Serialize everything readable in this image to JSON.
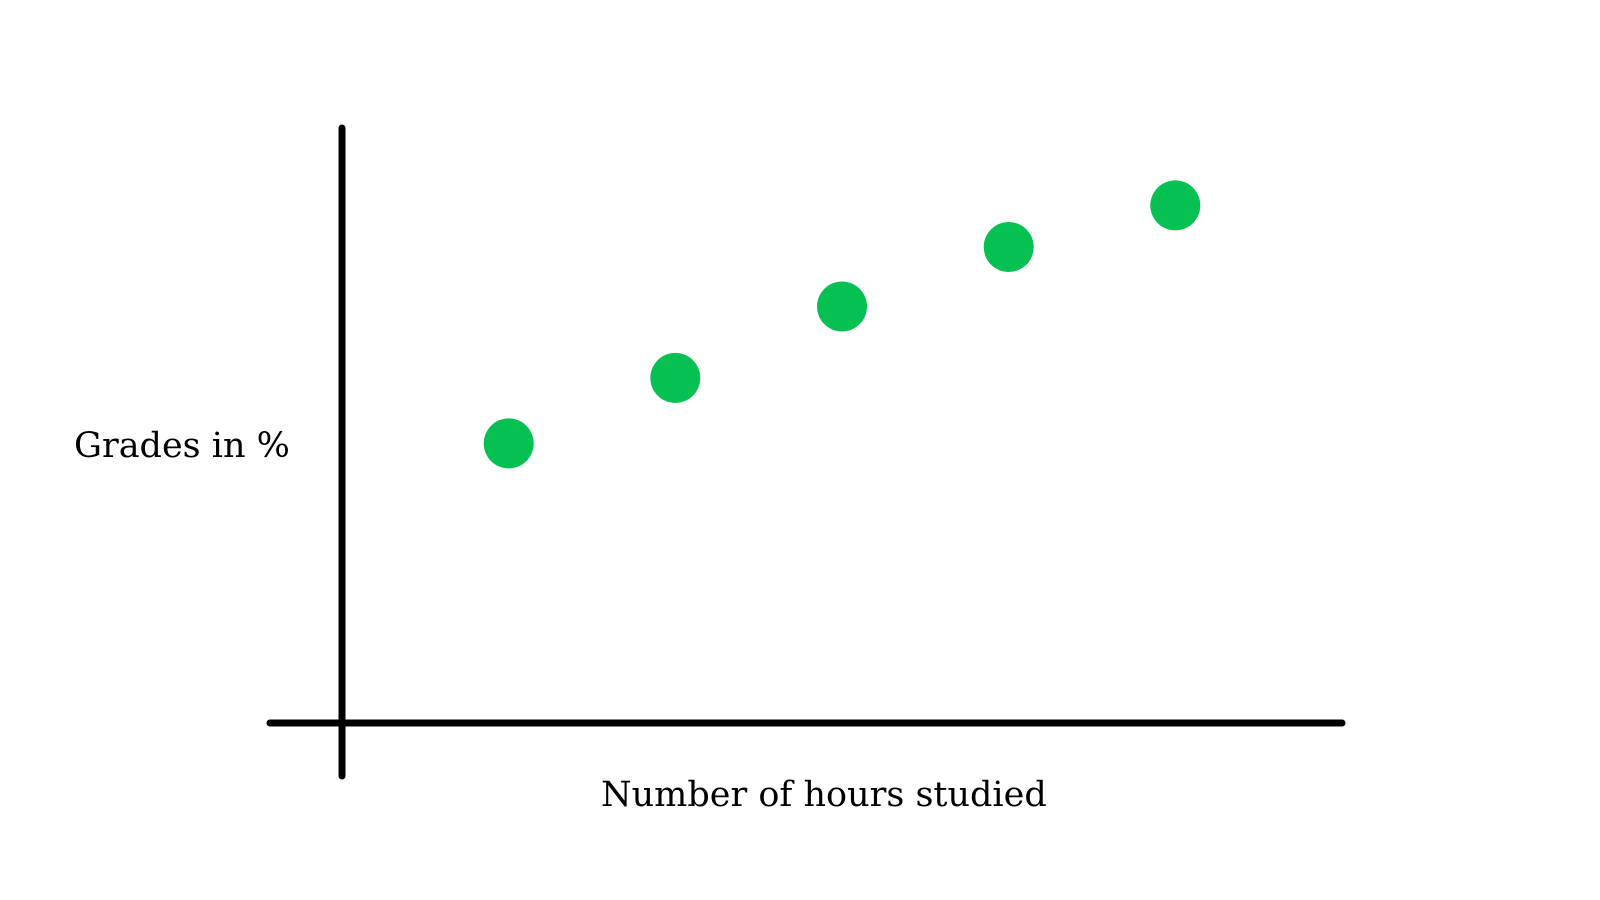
{
  "chart_data": {
    "type": "scatter",
    "title": "",
    "xlabel": "Number of hours studied",
    "ylabel": "Grades in %",
    "grid": false,
    "legend": "none",
    "x": [
      1,
      2,
      3,
      4,
      5
    ],
    "y": [
      47,
      58,
      70,
      80,
      87
    ],
    "xlim": [
      0,
      6
    ],
    "ylim": [
      0,
      100
    ],
    "colors": {
      "point": "#06c152",
      "axis": "#000000"
    }
  }
}
